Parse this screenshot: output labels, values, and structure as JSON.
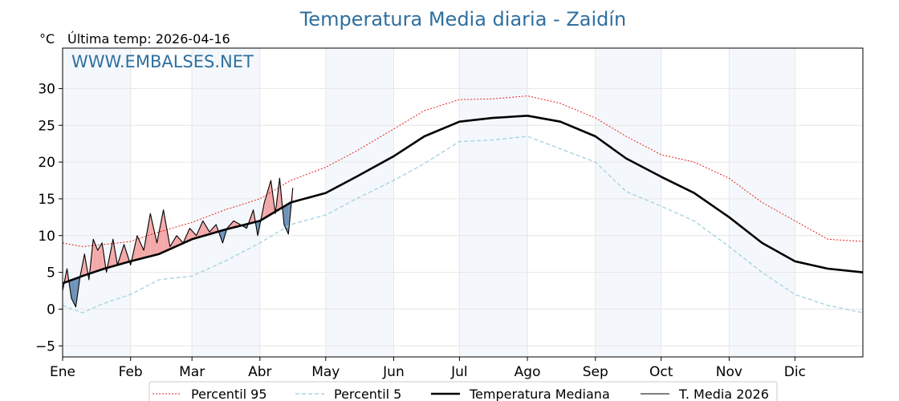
{
  "title": "Temperatura Media diaria - Zaidín",
  "unit_label": "°C",
  "last_temp_label": "Última temp: 2026-04-16",
  "watermark": "WWW.EMBALSES.NET",
  "colors": {
    "title": "#2f6f9f",
    "p95": "#e8201c",
    "p5": "#a9d3e3",
    "median": "#000000",
    "current": "#000000",
    "above_fill": "#f4a9a9",
    "below_fill": "#6f93b8",
    "band": "#f4f8fc"
  },
  "chart_data": {
    "type": "line",
    "title": "Temperatura Media diaria - Zaidín",
    "ylabel": "°C",
    "xlabel": "",
    "ylim": [
      -6.5,
      35.5
    ],
    "xlim": [
      1,
      366
    ],
    "yticks": [
      -5,
      0,
      5,
      10,
      15,
      20,
      25,
      30
    ],
    "xticks": [
      {
        "label": "Ene",
        "day": 1
      },
      {
        "label": "Feb",
        "day": 32
      },
      {
        "label": "Mar",
        "day": 60
      },
      {
        "label": "Abr",
        "day": 91
      },
      {
        "label": "May",
        "day": 121
      },
      {
        "label": "Jun",
        "day": 152
      },
      {
        "label": "Jul",
        "day": 182
      },
      {
        "label": "Ago",
        "day": 213
      },
      {
        "label": "Sep",
        "day": 244
      },
      {
        "label": "Oct",
        "day": 274
      },
      {
        "label": "Nov",
        "day": 305
      },
      {
        "label": "Dic",
        "day": 335
      }
    ],
    "grid": true,
    "legend_position": "bottom",
    "series": [
      {
        "name": "Percentil 95",
        "style": "dotted",
        "color": "#e8201c",
        "x": [
          1,
          10,
          20,
          32,
          45,
          60,
          75,
          91,
          105,
          121,
          135,
          152,
          166,
          182,
          197,
          213,
          228,
          244,
          258,
          274,
          289,
          305,
          320,
          335,
          350,
          366
        ],
        "y": [
          9.0,
          8.5,
          8.8,
          9.2,
          10.5,
          11.8,
          13.5,
          15.0,
          17.5,
          19.3,
          21.5,
          24.5,
          27.0,
          28.5,
          28.6,
          29.0,
          28.0,
          26.0,
          23.5,
          21.0,
          20.0,
          17.8,
          14.5,
          12.0,
          9.5,
          9.2
        ]
      },
      {
        "name": "Percentil 5",
        "style": "dashed",
        "color": "#a9d3e3",
        "x": [
          1,
          10,
          20,
          32,
          45,
          60,
          75,
          91,
          105,
          121,
          135,
          152,
          166,
          182,
          197,
          213,
          228,
          244,
          258,
          274,
          289,
          305,
          320,
          335,
          350,
          366
        ],
        "y": [
          0.5,
          -0.5,
          0.8,
          2.0,
          4.0,
          4.5,
          6.5,
          9.0,
          11.5,
          12.8,
          15.0,
          17.5,
          19.8,
          22.8,
          23.0,
          23.5,
          21.8,
          20.0,
          16.0,
          14.0,
          12.0,
          8.5,
          5.0,
          2.0,
          0.5,
          -0.5
        ]
      },
      {
        "name": "Temperatura Mediana",
        "style": "solid-bold",
        "color": "#000000",
        "x": [
          1,
          10,
          20,
          32,
          45,
          60,
          75,
          91,
          105,
          121,
          135,
          152,
          166,
          182,
          197,
          213,
          228,
          244,
          258,
          274,
          289,
          305,
          320,
          335,
          350,
          366
        ],
        "y": [
          3.5,
          4.5,
          5.5,
          6.5,
          7.5,
          9.5,
          10.8,
          12.0,
          14.5,
          15.8,
          18.0,
          20.8,
          23.5,
          25.5,
          26.0,
          26.3,
          25.5,
          23.5,
          20.5,
          18.0,
          15.8,
          12.5,
          9.0,
          6.5,
          5.5,
          5.0
        ]
      },
      {
        "name": "T. Media 2026",
        "style": "solid-thin",
        "color": "#000000",
        "x": [
          1,
          3,
          5,
          7,
          9,
          11,
          13,
          15,
          17,
          19,
          21,
          24,
          26,
          29,
          32,
          35,
          38,
          41,
          44,
          47,
          50,
          53,
          56,
          59,
          62,
          65,
          68,
          71,
          74,
          76,
          79,
          82,
          85,
          88,
          90,
          93,
          96,
          98,
          100,
          102,
          104,
          106
        ],
        "y": [
          2.5,
          5.5,
          1.5,
          0.3,
          4.5,
          7.5,
          4.0,
          9.5,
          8.0,
          9.0,
          5.0,
          9.5,
          6.0,
          8.8,
          6.0,
          10.0,
          8.0,
          13.0,
          9.0,
          13.5,
          8.5,
          10.0,
          9.0,
          11.0,
          10.0,
          12.0,
          10.5,
          11.5,
          9.0,
          11.0,
          12.0,
          11.5,
          11.0,
          13.5,
          10.0,
          14.5,
          17.5,
          13.0,
          17.8,
          11.5,
          10.2,
          16.5
        ]
      }
    ]
  },
  "legend": [
    {
      "label": "Percentil 95",
      "style": "dotted",
      "color": "#e8201c"
    },
    {
      "label": "Percentil 5",
      "style": "dashed",
      "color": "#a9d3e3"
    },
    {
      "label": "Temperatura Mediana",
      "style": "solid-bold",
      "color": "#000000"
    },
    {
      "label": "T. Media 2026",
      "style": "solid-thin",
      "color": "#000000"
    }
  ]
}
